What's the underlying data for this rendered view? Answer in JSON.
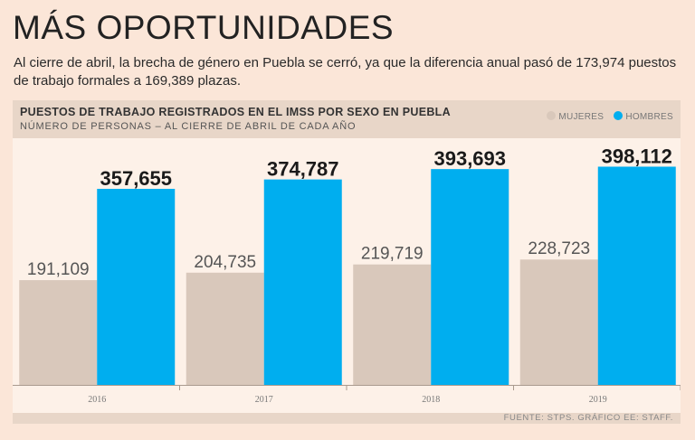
{
  "header": {
    "title": "MÁS OPORTUNIDADES",
    "subtitle": "Al cierre de abril, la brecha de género en Puebla se cerró, ya que la diferencia anual pasó de 173,974 puestos de trabajo formales a 169,389 plazas."
  },
  "chart_data": {
    "type": "bar",
    "title": "PUESTOS DE TRABAJO REGISTRADOS EN EL IMSS POR SEXO EN PUEBLA",
    "subtitle": "NÚMERO DE PERSONAS – AL CIERRE DE ABRIL DE CADA AÑO",
    "categories": [
      "2016",
      "2017",
      "2018",
      "2019"
    ],
    "series": [
      {
        "name": "MUJERES",
        "color": "#d9c8bb",
        "values": [
          191109,
          204735,
          219719,
          228723
        ],
        "labels": [
          "191,109",
          "204,735",
          "219,719",
          "228,723"
        ]
      },
      {
        "name": "HOMBRES",
        "color": "#00aeef",
        "values": [
          357655,
          374787,
          393693,
          398112
        ],
        "labels": [
          "357,655",
          "374,787",
          "393,693",
          "398,112"
        ]
      }
    ],
    "ylim": [
      0,
      450000
    ],
    "xlabel": "",
    "ylabel": ""
  },
  "legend": {
    "women": "MUJERES",
    "men": "HOMBRES",
    "women_color": "#d9c8bb",
    "men_color": "#00aeef"
  },
  "footer": {
    "source": "FUENTE: STPS. GRÁFICO EE: STAFF."
  }
}
